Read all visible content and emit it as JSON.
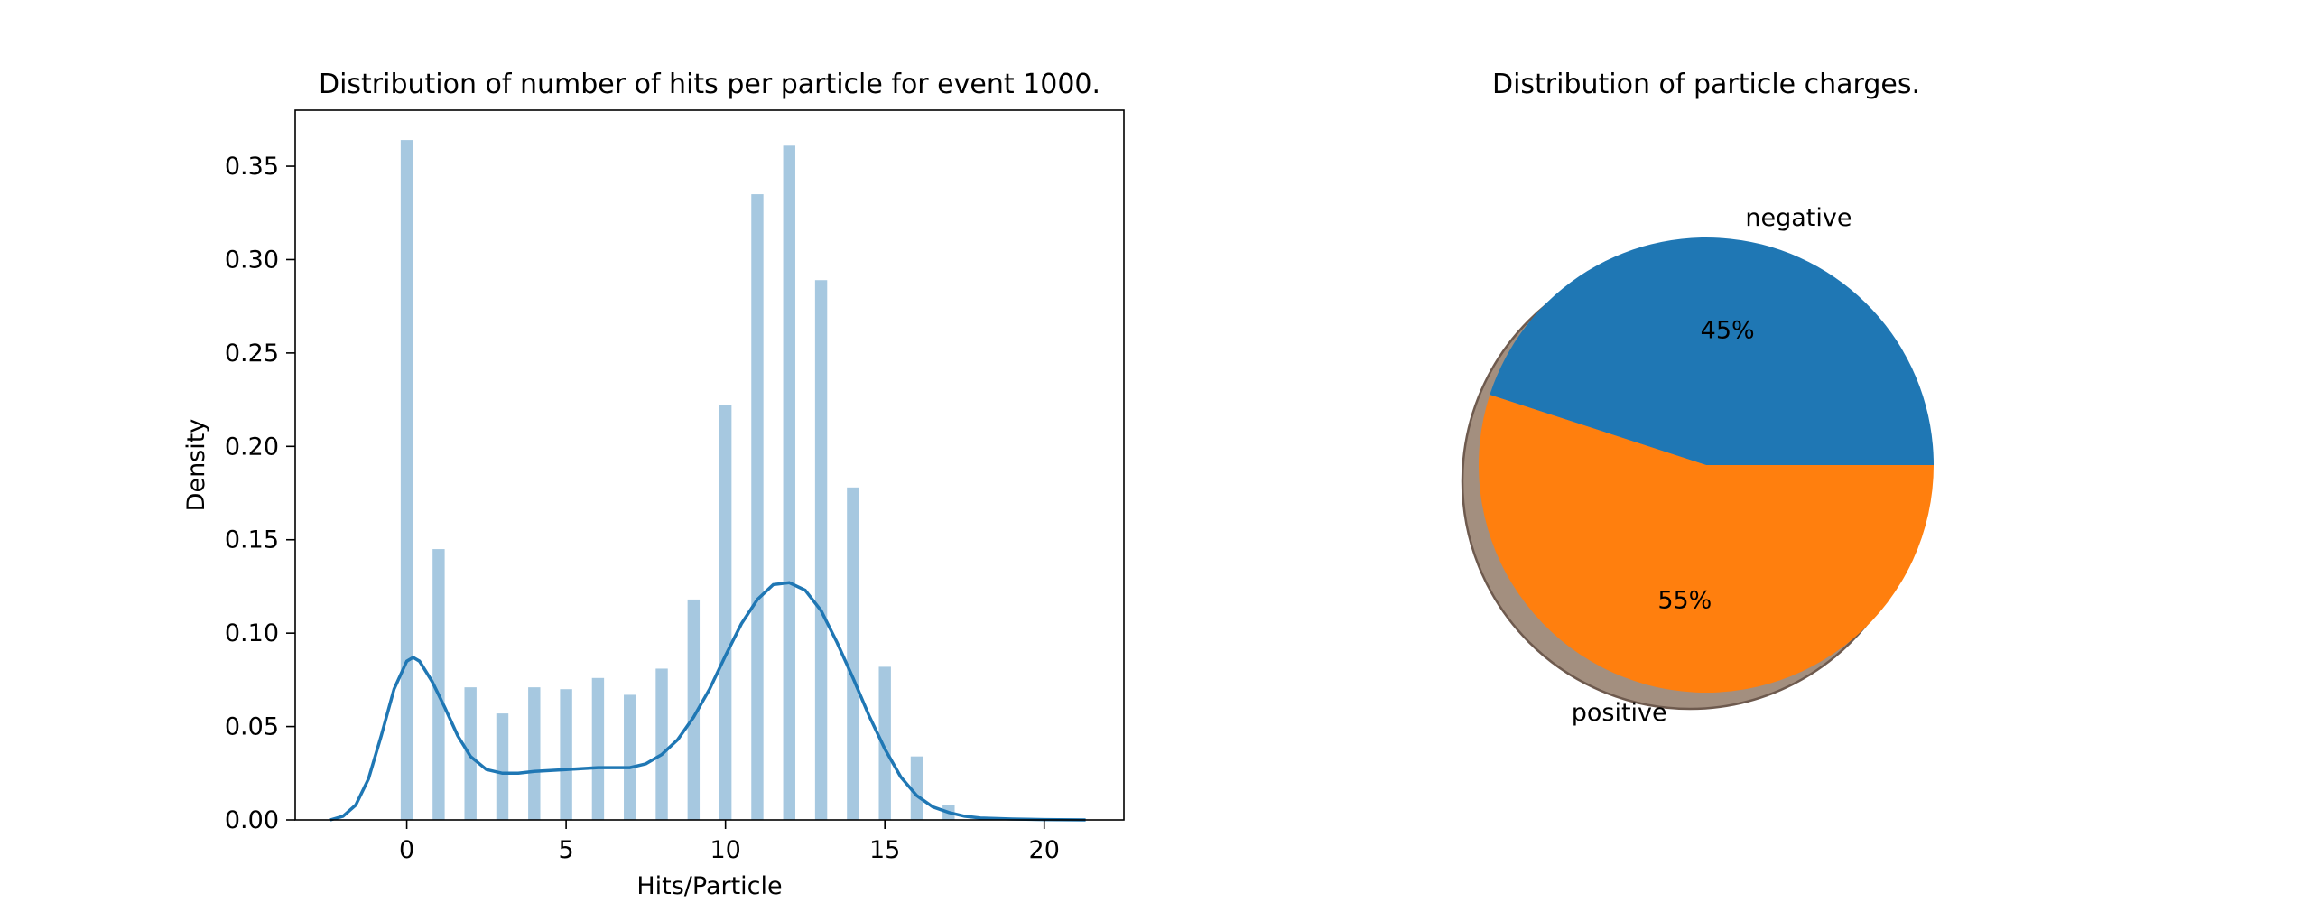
{
  "chart_data": [
    {
      "type": "bar",
      "title": "Distribution of number of hits per particle for event 1000.",
      "xlabel": "Hits/Particle",
      "ylabel": "Density",
      "xlim": [
        -3.5,
        22.5
      ],
      "ylim": [
        0,
        0.38
      ],
      "xticks": [
        0,
        5,
        10,
        15,
        20
      ],
      "yticks": [
        "0.00",
        "0.05",
        "0.10",
        "0.15",
        "0.20",
        "0.25",
        "0.30",
        "0.35"
      ],
      "bar_color": "#a6c8e0",
      "kde_color": "#1f77b4",
      "histogram": {
        "x": [
          0,
          1,
          2,
          3,
          4,
          5,
          6,
          7,
          8,
          9,
          10,
          11,
          12,
          13,
          14,
          15,
          16,
          17
        ],
        "values": [
          0.364,
          0.145,
          0.071,
          0.057,
          0.071,
          0.07,
          0.076,
          0.067,
          0.081,
          0.118,
          0.222,
          0.335,
          0.361,
          0.289,
          0.178,
          0.082,
          0.034,
          0.008
        ]
      },
      "kde": {
        "x": [
          -2.4,
          -2,
          -1.6,
          -1.2,
          -0.8,
          -0.4,
          0,
          0.2,
          0.4,
          0.8,
          1.2,
          1.6,
          2,
          2.5,
          3,
          3.5,
          4,
          5,
          6,
          7,
          7.5,
          8,
          8.5,
          9,
          9.5,
          10,
          10.5,
          11,
          11.5,
          12,
          12.5,
          13,
          13.5,
          14,
          14.5,
          15,
          15.5,
          16,
          16.5,
          17,
          17.5,
          18,
          19,
          20,
          21.3
        ],
        "y": [
          0.0,
          0.002,
          0.008,
          0.022,
          0.045,
          0.07,
          0.085,
          0.087,
          0.085,
          0.074,
          0.06,
          0.045,
          0.034,
          0.027,
          0.025,
          0.025,
          0.026,
          0.027,
          0.028,
          0.028,
          0.03,
          0.035,
          0.043,
          0.055,
          0.07,
          0.088,
          0.105,
          0.118,
          0.126,
          0.127,
          0.123,
          0.112,
          0.095,
          0.076,
          0.056,
          0.038,
          0.023,
          0.013,
          0.007,
          0.004,
          0.002,
          0.001,
          0.0005,
          0.0002,
          0.0
        ]
      }
    },
    {
      "type": "pie",
      "title": "Distribution of particle charges.",
      "labels": [
        "negative",
        "positive"
      ],
      "values": [
        45,
        55
      ],
      "autopct": [
        "45%",
        "55%"
      ],
      "colors": [
        "#1f77b4",
        "#ff7f0e"
      ],
      "shadow": true,
      "startangle": 0
    }
  ]
}
